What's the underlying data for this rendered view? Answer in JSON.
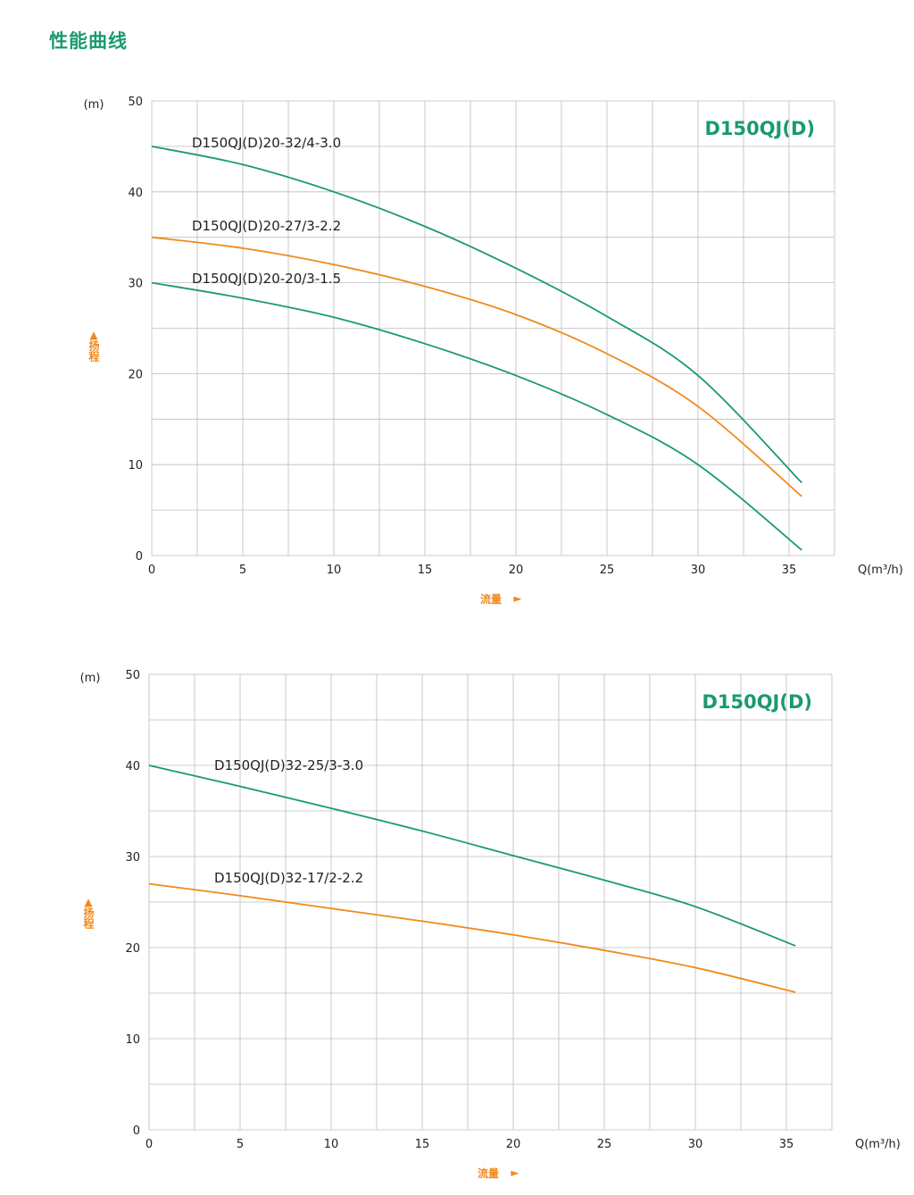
{
  "page_title": "性能曲线",
  "colors": {
    "green": "#1a9a70",
    "orange": "#f08a1c",
    "grid": "#bdbdbd",
    "text": "#222222"
  },
  "chart_data": [
    {
      "type": "line",
      "title": "D150QJ(D)",
      "ylabel_unit": "(m)",
      "ylabel": "扬程",
      "ylabel_arrow": "▲",
      "xlabel_unit": "Q(m³/h)",
      "xlabel": "流量",
      "xlabel_arrow": "►",
      "xlim": [
        0,
        37.5
      ],
      "ylim": [
        0,
        50
      ],
      "xticks": [
        "0",
        "5",
        "10",
        "15",
        "20",
        "25",
        "30",
        "35"
      ],
      "yticks": [
        "0",
        "10",
        "20",
        "30",
        "40",
        "50"
      ],
      "grid": true,
      "series": [
        {
          "name": "D150QJ(D)20-32/4-3.0",
          "color": "green",
          "x": [
            0,
            5,
            10,
            15,
            20,
            25,
            30,
            35.7
          ],
          "y": [
            45,
            43,
            40,
            36.2,
            31.6,
            26.3,
            19.8,
            8
          ]
        },
        {
          "name": "D150QJ(D)20-27/3-2.2",
          "color": "orange",
          "x": [
            0,
            5,
            10,
            15,
            20,
            25,
            30,
            35.7
          ],
          "y": [
            35,
            33.8,
            32,
            29.6,
            26.5,
            22.2,
            16.4,
            6.5
          ]
        },
        {
          "name": "D150QJ(D)20-20/3-1.5",
          "color": "green",
          "x": [
            0,
            5,
            10,
            15,
            20,
            25,
            30,
            35.7
          ],
          "y": [
            30,
            28.3,
            26.2,
            23.3,
            19.8,
            15.5,
            10,
            0.6
          ]
        }
      ]
    },
    {
      "type": "line",
      "title": "D150QJ(D)",
      "ylabel_unit": "(m)",
      "ylabel": "扬程",
      "ylabel_arrow": "▲",
      "xlabel_unit": "Q(m³/h)",
      "xlabel": "流量",
      "xlabel_arrow": "►",
      "xlim": [
        0,
        37.5
      ],
      "ylim": [
        0,
        50
      ],
      "xticks": [
        "0",
        "5",
        "10",
        "15",
        "20",
        "25",
        "30",
        "35"
      ],
      "yticks": [
        "0",
        "10",
        "20",
        "30",
        "40",
        "50"
      ],
      "grid": true,
      "series": [
        {
          "name": "D150QJ(D)32-25/3-3.0",
          "color": "green",
          "x": [
            0,
            5,
            10,
            15,
            20,
            25,
            30,
            35.5
          ],
          "y": [
            40,
            37.7,
            35.3,
            32.8,
            30.1,
            27.4,
            24.5,
            20.2
          ]
        },
        {
          "name": "D150QJ(D)32-17/2-2.2",
          "color": "orange",
          "x": [
            0,
            5,
            10,
            15,
            20,
            25,
            30,
            35.5
          ],
          "y": [
            27,
            25.7,
            24.3,
            22.9,
            21.4,
            19.7,
            17.8,
            15.1
          ]
        }
      ]
    }
  ]
}
